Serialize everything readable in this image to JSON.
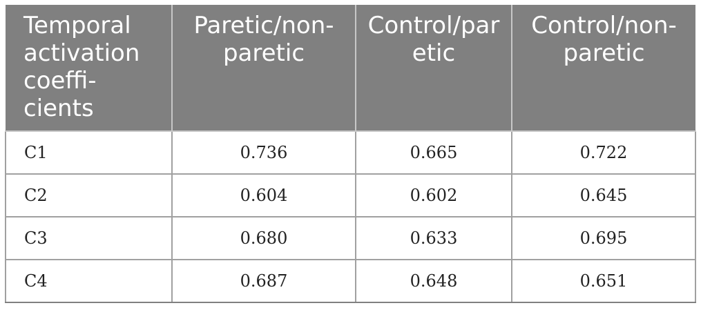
{
  "table": {
    "headers": [
      "Temporal activation coeffi-cients",
      "Paretic/non-paretic",
      "Control/paretic",
      "Control/non-paretic"
    ],
    "rows": [
      {
        "label": "C1",
        "values": [
          "0.736",
          "0.665",
          "0.722"
        ]
      },
      {
        "label": "C2",
        "values": [
          "0.604",
          "0.602",
          "0.645"
        ]
      },
      {
        "label": "C3",
        "values": [
          "0.680",
          "0.633",
          "0.695"
        ]
      },
      {
        "label": "C4",
        "values": [
          "0.687",
          "0.648",
          "0.651"
        ]
      }
    ]
  },
  "colors": {
    "header_bg": "#808080",
    "header_text": "#ffffff",
    "grid": "#a0a0a0"
  }
}
